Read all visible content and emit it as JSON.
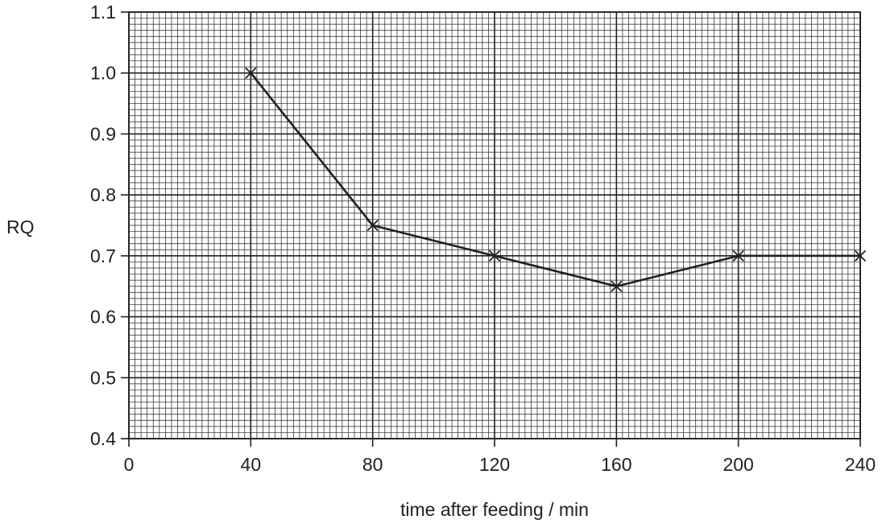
{
  "chart_data": {
    "type": "line",
    "title": "",
    "xlabel": "time after feeding / min",
    "ylabel": "RQ",
    "xlim": [
      0,
      240
    ],
    "ylim": [
      0.4,
      1.1
    ],
    "x_ticks": [
      0,
      40,
      80,
      120,
      160,
      200,
      240
    ],
    "x_tick_labels": [
      "0",
      "40",
      "80",
      "120",
      "160",
      "200",
      "240"
    ],
    "y_ticks": [
      0.4,
      0.5,
      0.6,
      0.7,
      0.8,
      0.9,
      1.0,
      1.1
    ],
    "y_tick_labels": [
      "0.4",
      "0.5",
      "0.6",
      "0.7",
      "0.8",
      "0.9",
      "1.0",
      "1.1"
    ],
    "grid": true,
    "grid_minor_per_major_x": 20,
    "grid_minor_per_major_y": 10,
    "marker": "cross",
    "series": [
      {
        "x": [
          40,
          80,
          120,
          160,
          200,
          240
        ],
        "y": [
          1.0,
          0.75,
          0.7,
          0.65,
          0.7,
          0.7
        ]
      }
    ]
  },
  "colors": {
    "ink": "#231f20",
    "minor_grid": "#231f20",
    "background": "#ffffff"
  }
}
